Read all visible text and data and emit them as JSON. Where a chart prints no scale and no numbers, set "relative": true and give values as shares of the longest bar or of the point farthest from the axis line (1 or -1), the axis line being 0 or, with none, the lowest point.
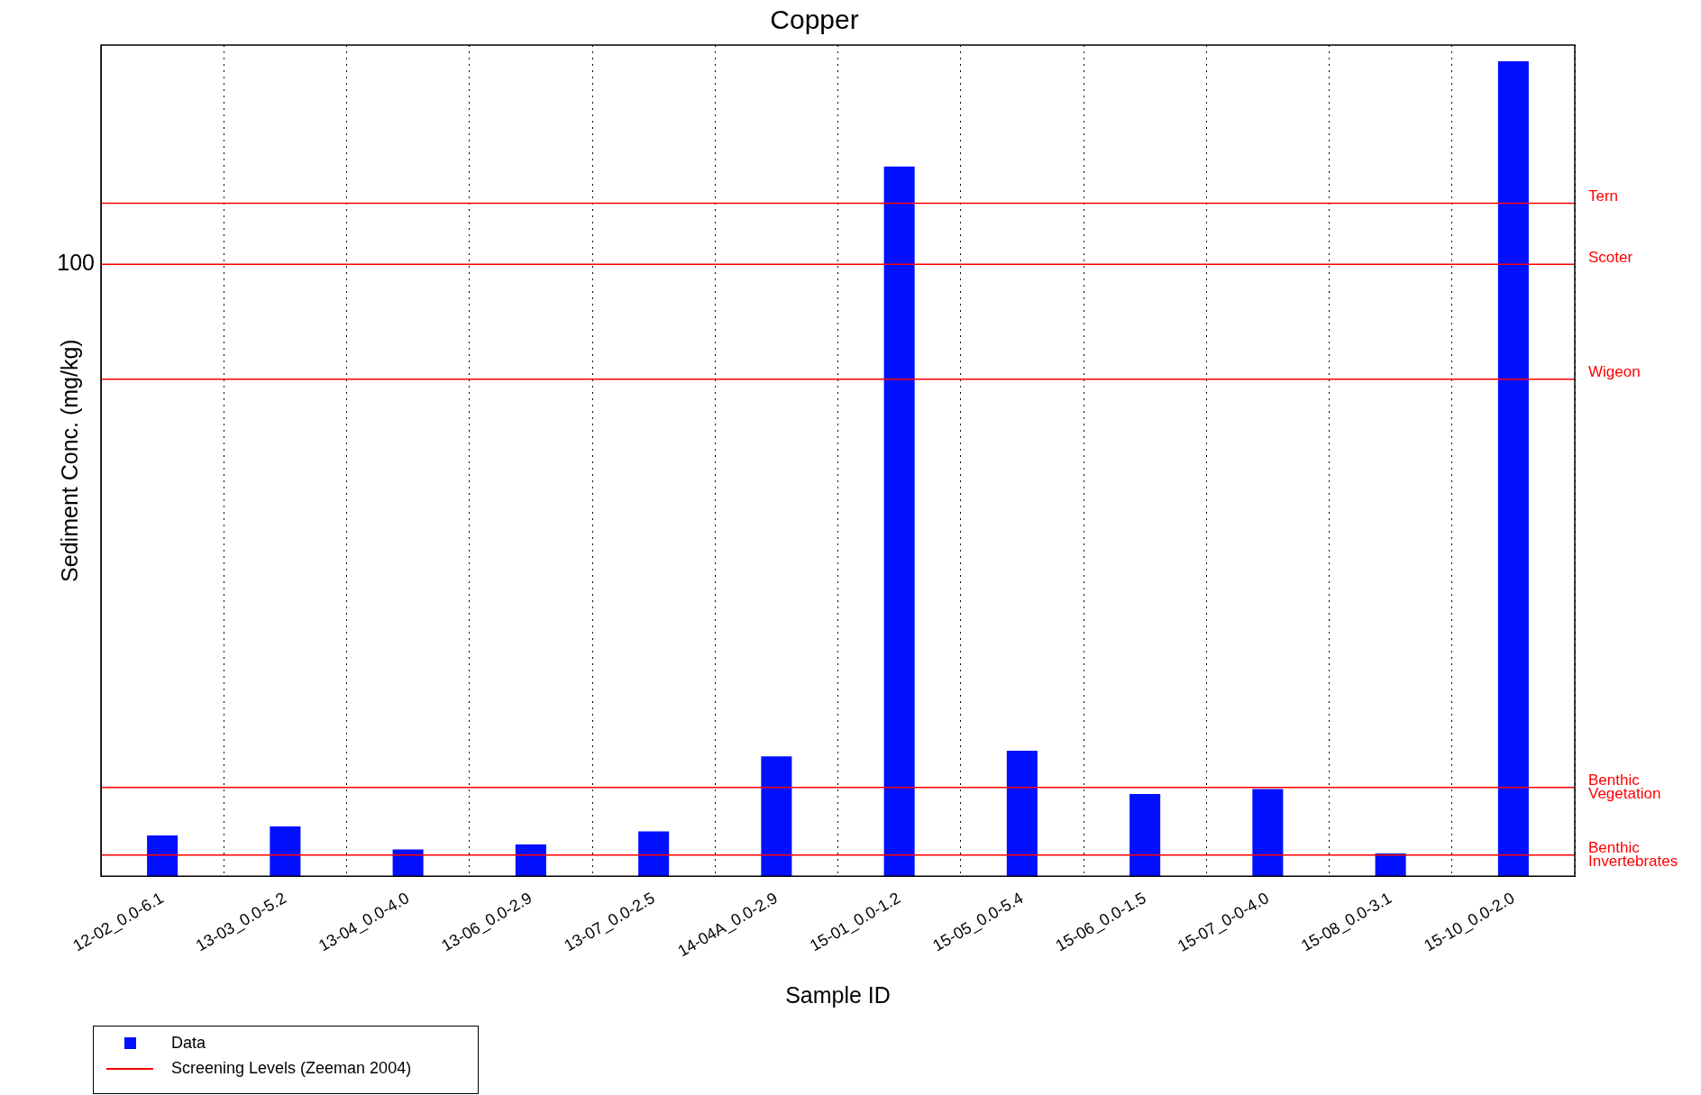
{
  "chart_data": {
    "type": "bar",
    "title": "Copper",
    "xlabel": "Sample ID",
    "ylabel": "Sediment Conc. (mg/kg)",
    "categories": [
      "12-02_0.0-6.1",
      "13-03_0.0-5.2",
      "13-04_0.0-4.0",
      "13-06_0.0-2.9",
      "13-07_0.0-2.5",
      "14-04A_0.0-2.9",
      "15-01_0.0-1.2",
      "15-05_0.0-5.4",
      "15-06_0.0-1.5",
      "15-07_0-0-4.0",
      "15-08_0.0-3.1",
      "15-10_0.0-2.0"
    ],
    "relative": true,
    "series": [
      {
        "name": "Data",
        "color": "#0010ff",
        "values": [
          0.05,
          0.061,
          0.033,
          0.039,
          0.055,
          0.147,
          0.871,
          0.154,
          0.101,
          0.107,
          0.028,
          1
        ]
      }
    ],
    "ref_lines": [
      {
        "axis": "y",
        "value": 0.826,
        "label": "Tern",
        "color": "#ff0000"
      },
      {
        "axis": "y",
        "value": 0.751,
        "label": "Scoter",
        "color": "#ff0000"
      },
      {
        "axis": "y",
        "value": 0.61,
        "label": "Wigeon",
        "color": "#ff0000"
      },
      {
        "axis": "y",
        "value": 0.109,
        "label": "Benthic Vegetation",
        "color": "#ff0000"
      },
      {
        "axis": "y",
        "value": 0.026,
        "label": "Benthic Invertebrates",
        "color": "#ff0000"
      }
    ],
    "annotations": [
      "100",
      "Screening Levels (Zeeman 2004)"
    ],
    "grid": "x",
    "line_style": "dotted",
    "legend": "bottom left",
    "marker": "square"
  }
}
